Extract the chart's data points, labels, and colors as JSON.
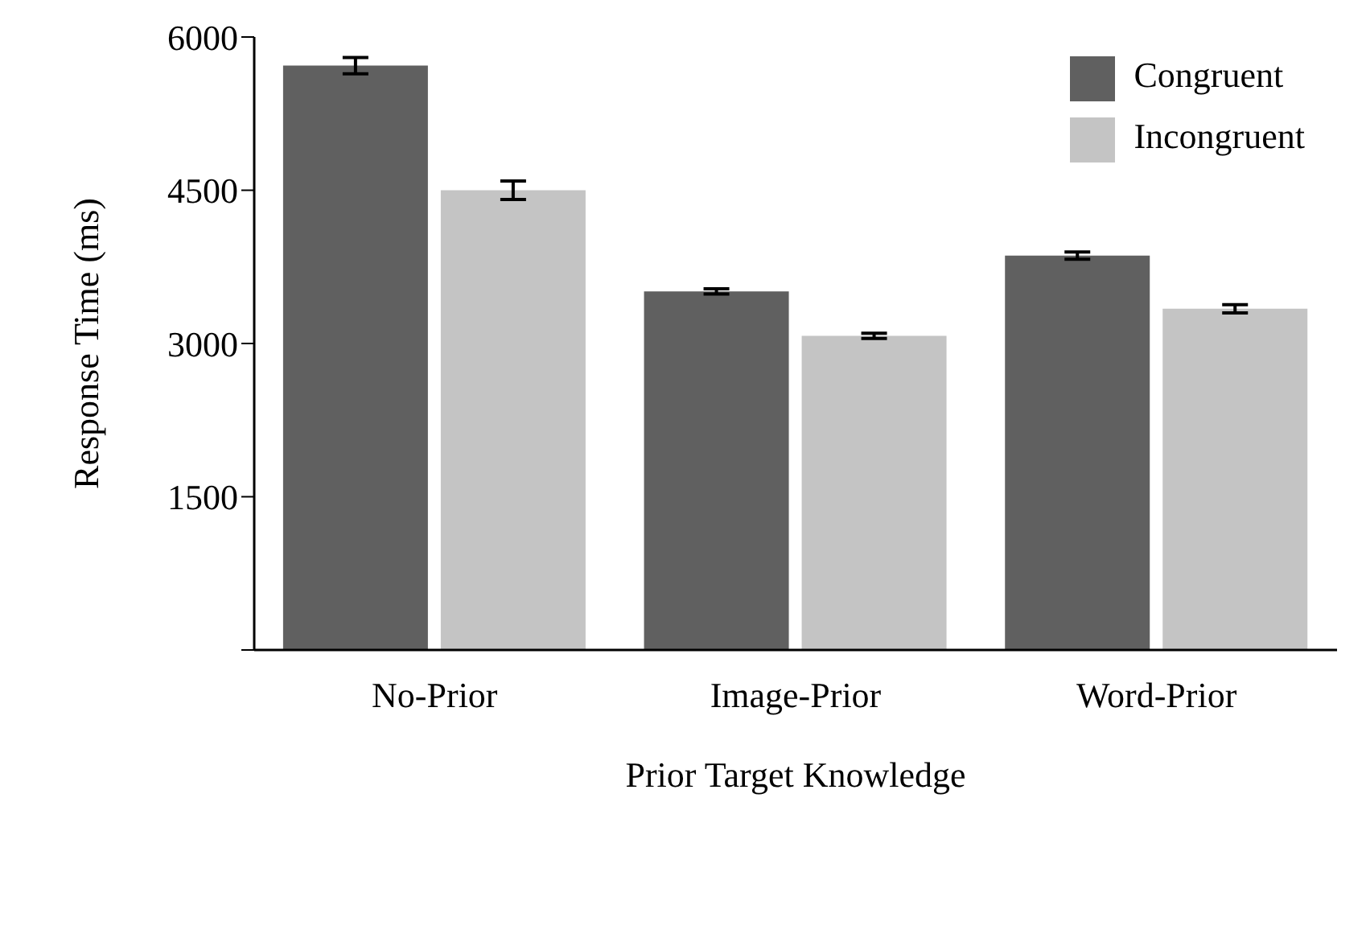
{
  "chart_data": {
    "type": "bar",
    "xlabel": "Prior Target Knowledge",
    "ylabel": "Response Time (ms)",
    "categories": [
      "No-Prior",
      "Image-Prior",
      "Word-Prior"
    ],
    "series": [
      {
        "name": "Congruent",
        "color": "#606060",
        "values": [
          5720,
          3510,
          3860
        ],
        "errors": [
          80,
          25,
          35
        ]
      },
      {
        "name": "Incongruent",
        "color": "#c4c4c4",
        "values": [
          4500,
          3075,
          3340
        ],
        "errors": [
          90,
          25,
          40
        ]
      }
    ],
    "ylim": [
      0,
      6000
    ],
    "yticks": [
      {
        "value": 0,
        "label": null
      },
      1500,
      3000,
      4500,
      6000
    ],
    "grid": false,
    "legend": "top right"
  }
}
